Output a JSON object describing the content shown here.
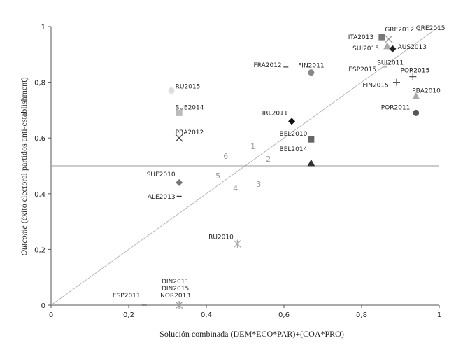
{
  "chart_data": {
    "type": "scatter",
    "title": "",
    "xlabel": "Solución combinada (DEM*ECO*PAR)+(COA*PRO)",
    "ylabel_italic": "Outcome",
    "ylabel_rest": " (éxito electoral partidos anti-establishment)",
    "xlim": [
      0,
      1
    ],
    "ylim": [
      0,
      1
    ],
    "x_ticks": [
      "0",
      "0,2",
      "0,4",
      "0,6",
      "0,8",
      "1"
    ],
    "y_ticks": [
      "0",
      "0,2",
      "0,4",
      "0,6",
      "0,8",
      "1"
    ],
    "grid": false,
    "threshold_x": 0.5,
    "threshold_y": 0.5,
    "diagonal": true,
    "quadrant_labels": [
      {
        "text": "1",
        "x": 0.52,
        "y": 0.57
      },
      {
        "text": "2",
        "x": 0.56,
        "y": 0.525
      },
      {
        "text": "3",
        "x": 0.535,
        "y": 0.435
      },
      {
        "text": "4",
        "x": 0.475,
        "y": 0.42
      },
      {
        "text": "5",
        "x": 0.43,
        "y": 0.465
      },
      {
        "text": "6",
        "x": 0.45,
        "y": 0.535
      }
    ],
    "points": [
      {
        "label": "GRE2015",
        "x": 0.95,
        "y": 0.985,
        "marker": "dash",
        "color": "#bbbbbb",
        "lx": 0.94,
        "ly": 0.995,
        "anchor": "start"
      },
      {
        "label": "GRE2012",
        "x": 0.87,
        "y": 0.955,
        "marker": "x",
        "color": "#999999",
        "lx": 0.86,
        "ly": 0.99,
        "anchor": "start"
      },
      {
        "label": "ITA2013",
        "x": 0.852,
        "y": 0.962,
        "marker": "square",
        "color": "#777777",
        "lx": 0.831,
        "ly": 0.962,
        "anchor": "end"
      },
      {
        "label": "SUI2015",
        "x": 0.866,
        "y": 0.93,
        "marker": "triangle",
        "color": "#aaaaaa",
        "lx": 0.845,
        "ly": 0.922,
        "anchor": "end"
      },
      {
        "label": "AUS2013",
        "x": 0.88,
        "y": 0.92,
        "marker": "diamond",
        "color": "#222222",
        "lx": 0.893,
        "ly": 0.927,
        "anchor": "start"
      },
      {
        "label": "SUI2011",
        "x": 0.87,
        "y": 0.865,
        "marker": "dash",
        "color": "#bbbbbb",
        "lx": 0.84,
        "ly": 0.87,
        "anchor": "start"
      },
      {
        "label": "ESP2015",
        "x": 0.86,
        "y": 0.855,
        "marker": "dash",
        "color": "#bbbbbb",
        "lx": 0.838,
        "ly": 0.847,
        "anchor": "end"
      },
      {
        "label": "FRA2012",
        "x": 0.605,
        "y": 0.855,
        "marker": "dash",
        "color": "#777777",
        "lx": 0.594,
        "ly": 0.862,
        "anchor": "end"
      },
      {
        "label": "FIN2011",
        "x": 0.67,
        "y": 0.835,
        "marker": "circle",
        "color": "#888888",
        "lx": 0.67,
        "ly": 0.86,
        "anchor": "middle"
      },
      {
        "label": "POR2015",
        "x": 0.932,
        "y": 0.82,
        "marker": "plus",
        "color": "#555555",
        "lx": 0.9,
        "ly": 0.843,
        "anchor": "start"
      },
      {
        "label": "FIN2015",
        "x": 0.89,
        "y": 0.8,
        "marker": "plus",
        "color": "#555555",
        "lx": 0.87,
        "ly": 0.79,
        "anchor": "end"
      },
      {
        "label": "PBA2010",
        "x": 0.94,
        "y": 0.75,
        "marker": "triangle",
        "color": "#aaaaaa",
        "lx": 0.93,
        "ly": 0.77,
        "anchor": "start"
      },
      {
        "label": "POR2011",
        "x": 0.94,
        "y": 0.69,
        "marker": "circle",
        "color": "#555555",
        "lx": 0.925,
        "ly": 0.71,
        "anchor": "end"
      },
      {
        "label": "RU2015",
        "x": 0.31,
        "y": 0.77,
        "marker": "circle",
        "color": "#dddddd",
        "lx": 0.32,
        "ly": 0.785,
        "anchor": "start"
      },
      {
        "label": "SUE2014",
        "x": 0.33,
        "y": 0.69,
        "marker": "square",
        "color": "#bbbbbb",
        "lx": 0.32,
        "ly": 0.71,
        "anchor": "start"
      },
      {
        "label": "PBA2012",
        "x": 0.33,
        "y": 0.6,
        "marker": "x",
        "color": "#444444",
        "lx": 0.32,
        "ly": 0.62,
        "anchor": "start"
      },
      {
        "label": "IRL2011",
        "x": 0.62,
        "y": 0.66,
        "marker": "diamond",
        "color": "#111111",
        "lx": 0.61,
        "ly": 0.69,
        "anchor": "end"
      },
      {
        "label": "BEL2010",
        "x": 0.67,
        "y": 0.595,
        "marker": "square",
        "color": "#666666",
        "lx": 0.66,
        "ly": 0.615,
        "anchor": "end"
      },
      {
        "label": "BEL2014",
        "x": 0.67,
        "y": 0.51,
        "marker": "triangle",
        "color": "#333333",
        "lx": 0.66,
        "ly": 0.56,
        "anchor": "end"
      },
      {
        "label": "SUE2010",
        "x": 0.33,
        "y": 0.44,
        "marker": "diamond",
        "color": "#777777",
        "lx": 0.32,
        "ly": 0.47,
        "anchor": "end"
      },
      {
        "label": "ALE2013",
        "x": 0.33,
        "y": 0.39,
        "marker": "dash",
        "color": "#333333",
        "lx": 0.32,
        "ly": 0.39,
        "anchor": "end"
      },
      {
        "label": "RU2010",
        "x": 0.48,
        "y": 0.22,
        "marker": "star",
        "color": "#aaaaaa",
        "lx": 0.47,
        "ly": 0.245,
        "anchor": "end"
      },
      {
        "label": "DIN2011",
        "x": 0.33,
        "y": 0.0,
        "marker": "star",
        "color": "#999999",
        "lx": 0.32,
        "ly": 0.085,
        "anchor": "middle"
      },
      {
        "label": "DIN2015",
        "x": 0.33,
        "y": 0.0,
        "marker": "none",
        "color": "#999999",
        "lx": 0.32,
        "ly": 0.06,
        "anchor": "middle"
      },
      {
        "label": "NOR2013",
        "x": 0.33,
        "y": 0.0,
        "marker": "none",
        "color": "#999999",
        "lx": 0.32,
        "ly": 0.035,
        "anchor": "middle"
      },
      {
        "label": "ESP2011",
        "x": 0.24,
        "y": 0.0,
        "marker": "dash",
        "color": "#888888",
        "lx": 0.23,
        "ly": 0.035,
        "anchor": "end"
      }
    ]
  }
}
